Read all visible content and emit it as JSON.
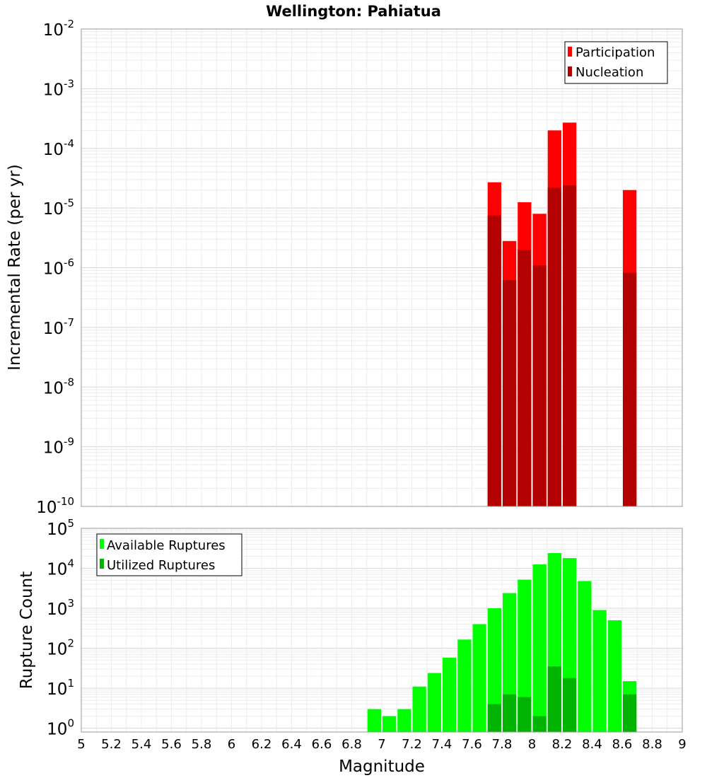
{
  "chart_data": [
    {
      "type": "bar",
      "title": "Wellington: Pahiatua",
      "xlabel": "Magnitude",
      "ylabel": "Incremental Rate (per yr)",
      "yscale": "log",
      "ylim": [
        1e-10,
        0.01
      ],
      "xlim": [
        5,
        9
      ],
      "grid": true,
      "legend_position": "top-right",
      "y_ticks": [
        {
          "base": "10",
          "exp": "-10"
        },
        {
          "base": "10",
          "exp": "-9"
        },
        {
          "base": "10",
          "exp": "-8"
        },
        {
          "base": "10",
          "exp": "-7"
        },
        {
          "base": "10",
          "exp": "-6"
        },
        {
          "base": "10",
          "exp": "-5"
        },
        {
          "base": "10",
          "exp": "-4"
        },
        {
          "base": "10",
          "exp": "-3"
        },
        {
          "base": "10",
          "exp": "-2"
        }
      ],
      "series": [
        {
          "name": "Participation",
          "color": "#ff0000",
          "x": [
            7.75,
            7.85,
            7.95,
            8.05,
            8.15,
            8.25,
            8.65
          ],
          "values": [
            2.7e-05,
            2.8e-06,
            1.25e-05,
            8e-06,
            0.0002,
            0.00027,
            2e-05
          ]
        },
        {
          "name": "Nucleation",
          "color": "#b30000",
          "x": [
            7.75,
            7.85,
            7.95,
            8.05,
            8.15,
            8.25,
            8.65
          ],
          "values": [
            7.5e-06,
            6.2e-07,
            2e-06,
            1.1e-06,
            2.2e-05,
            2.4e-05,
            8.2e-07
          ]
        }
      ]
    },
    {
      "type": "bar",
      "xlabel": "Magnitude",
      "ylabel": "Rupture Count",
      "yscale": "log",
      "ylim": [
        0.8,
        100000
      ],
      "xlim": [
        5,
        9
      ],
      "grid": true,
      "legend_position": "top-left",
      "x_ticks": [
        "5",
        "5.2",
        "5.4",
        "5.6",
        "5.8",
        "6",
        "6.2",
        "6.4",
        "6.6",
        "6.8",
        "7",
        "7.2",
        "7.4",
        "7.6",
        "7.8",
        "8",
        "8.2",
        "8.4",
        "8.6",
        "8.8",
        "9"
      ],
      "y_ticks": [
        {
          "base": "10",
          "exp": "0"
        },
        {
          "base": "10",
          "exp": "1"
        },
        {
          "base": "10",
          "exp": "2"
        },
        {
          "base": "10",
          "exp": "3"
        },
        {
          "base": "10",
          "exp": "4"
        },
        {
          "base": "10",
          "exp": "5"
        }
      ],
      "series": [
        {
          "name": "Available Ruptures",
          "color": "#00ff00",
          "x": [
            6.95,
            7.05,
            7.15,
            7.25,
            7.35,
            7.45,
            7.55,
            7.65,
            7.75,
            7.85,
            7.95,
            8.05,
            8.15,
            8.25,
            8.35,
            8.45,
            8.55,
            8.65
          ],
          "values": [
            3,
            2,
            3,
            11,
            24,
            58,
            165,
            400,
            1000,
            2400,
            5200,
            12500,
            24000,
            18000,
            4800,
            900,
            500,
            15
          ]
        },
        {
          "name": "Utilized Ruptures",
          "color": "#00b300",
          "x": [
            7.75,
            7.85,
            7.95,
            8.05,
            8.15,
            8.25,
            8.65
          ],
          "values": [
            4,
            7,
            6,
            2,
            35,
            18,
            7
          ]
        }
      ]
    }
  ]
}
